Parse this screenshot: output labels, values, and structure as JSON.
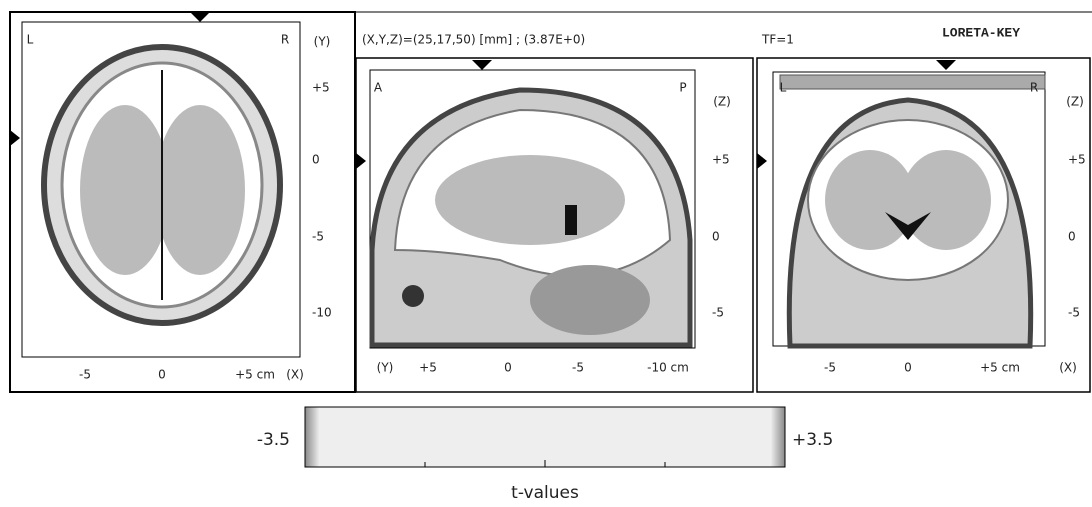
{
  "header": {
    "coordinates": "(X,Y,Z)=(25,17,50) [mm] ; (3.87E+0)",
    "time_frame": "TF=1",
    "app_name": "LORETA-KEY"
  },
  "panels": [
    {
      "corner_left": "L",
      "corner_right": "R",
      "y_axis_label": "(Y)",
      "yticks": [
        "+5",
        "0",
        "-5",
        "-10"
      ],
      "xticks": [
        "-5",
        "0",
        "+5 cm",
        "(X)"
      ]
    },
    {
      "corner_left": "A",
      "corner_right": "P",
      "y_axis_label": "(Z)",
      "yticks": [
        "+5",
        "0",
        "-5"
      ],
      "xticks": [
        "(Y)",
        "+5",
        "0",
        "-5",
        "-10 cm"
      ]
    },
    {
      "corner_left": "L",
      "corner_right": "R",
      "y_axis_label": "(Z)",
      "yticks": [
        "+5",
        "0",
        "-5"
      ],
      "xticks": [
        "-5",
        "0",
        "+5 cm",
        "(X)"
      ]
    }
  ],
  "colorbar": {
    "min_label": "-3.5",
    "max_label": "+3.5",
    "title": "t-values"
  }
}
